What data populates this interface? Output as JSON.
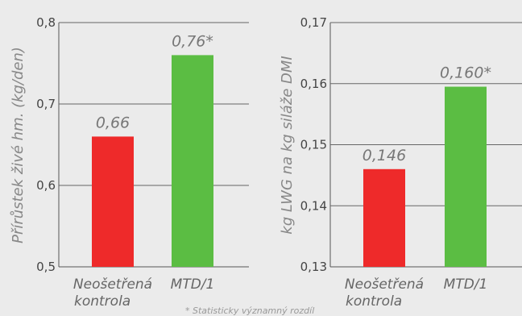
{
  "footnote": "* Statisticky významný rozdíl",
  "chart_data": [
    {
      "type": "bar",
      "ylabel": "Přírůstek živé hm. (kg/den)",
      "categories": [
        [
          "Neošetřená",
          "kontrola"
        ],
        [
          "MTD/1"
        ]
      ],
      "values": [
        0.66,
        0.76
      ],
      "data_labels": [
        "0,66",
        "0,76*"
      ],
      "colors": [
        "#ee2a2a",
        "#5bbd43"
      ],
      "ylim": [
        0.5,
        0.8
      ],
      "yticks": [
        0.5,
        0.6,
        0.7,
        0.8
      ],
      "ytick_labels": [
        "0,5",
        "0,6",
        "0,7",
        "0,8"
      ],
      "grid": true
    },
    {
      "type": "bar",
      "ylabel": "kg LWG na kg siláže DMI",
      "categories": [
        [
          "Neošetřená",
          "kontrola"
        ],
        [
          "MTD/1"
        ]
      ],
      "values": [
        0.146,
        0.1595
      ],
      "data_labels": [
        "0,146",
        "0,160*"
      ],
      "colors": [
        "#ee2a2a",
        "#5bbd43"
      ],
      "ylim": [
        0.13,
        0.17
      ],
      "yticks": [
        0.13,
        0.14,
        0.15,
        0.16,
        0.17
      ],
      "ytick_labels": [
        "0,13",
        "0,14",
        "0,15",
        "0,16",
        "0,17"
      ],
      "grid": true
    }
  ]
}
